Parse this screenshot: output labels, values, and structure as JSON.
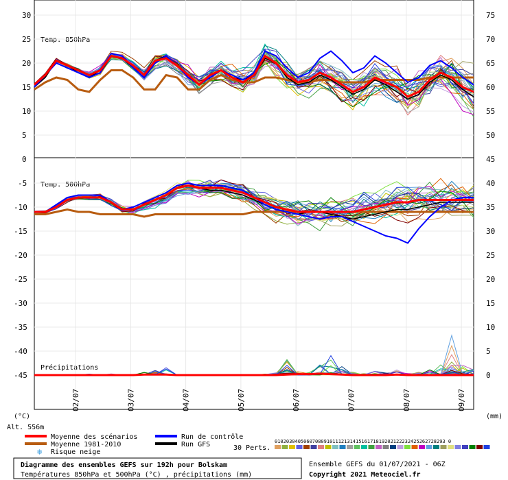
{
  "chart_data": {
    "type": "line",
    "x_labels": [
      "02/07",
      "03/07",
      "04/07",
      "05/07",
      "06/07",
      "07/07",
      "08/07",
      "09/07"
    ],
    "panels": {
      "t850": {
        "title": "Temp. 850hPa",
        "left_ticks": [
          "30",
          "25",
          "20",
          "15",
          "10",
          "5"
        ],
        "right_ticks": [
          "75",
          "70",
          "65",
          "60",
          "55",
          "50"
        ],
        "mean": [
          15.5,
          17.5,
          20.5,
          19.5,
          18.5,
          17.5,
          18.5,
          21.5,
          21,
          19.5,
          17.5,
          20.5,
          21,
          19.5,
          17.5,
          15.5,
          17.5,
          18.5,
          17,
          16,
          17.5,
          21.5,
          20,
          17.5,
          16,
          16.5,
          18,
          17,
          15.5,
          14,
          15,
          17,
          16,
          15,
          13,
          14,
          16.5,
          18,
          17,
          15,
          14
        ],
        "normal": [
          14.5,
          16,
          17,
          16.5,
          14.5,
          14,
          16.5,
          18.5,
          18.5,
          17,
          14.5,
          14.5,
          17.5,
          17,
          14.5,
          14.5,
          16.5,
          17.5,
          16.5,
          16,
          16,
          17,
          17,
          16.5,
          16,
          16,
          16.5,
          16.5,
          16,
          16,
          16,
          16.5,
          16.5,
          16.5,
          16.5,
          16.5,
          17,
          17,
          17,
          17,
          17
        ],
        "control": [
          15,
          17.5,
          20,
          19,
          18,
          17,
          18,
          22,
          21.5,
          19,
          17,
          20,
          21.5,
          19.5,
          17,
          15.5,
          17,
          18.5,
          17.5,
          16.5,
          18,
          22.5,
          21.5,
          19,
          17,
          18,
          21,
          22.5,
          20.5,
          18,
          19,
          21.5,
          20,
          18,
          16,
          17,
          19.5,
          20.5,
          19,
          17,
          15.5
        ],
        "gfs": [
          15,
          17,
          20.5,
          19.5,
          18,
          17,
          18.5,
          21.5,
          21,
          19,
          17,
          20.5,
          21.5,
          19.5,
          17.5,
          15.5,
          17.5,
          18.5,
          17,
          16.5,
          17.5,
          21,
          20,
          17,
          15.5,
          16,
          17.5,
          16.5,
          15,
          13.5,
          14.5,
          16.5,
          15.5,
          14,
          12.5,
          13.5,
          16,
          17.5,
          16.5,
          14.5,
          13
        ]
      },
      "t500": {
        "title": "Temp. 500hPa",
        "left_ticks": [
          "-5",
          "-10",
          "-15",
          "-20",
          "-25",
          "-30",
          "-35",
          "-40",
          "-45"
        ],
        "right_ticks": [
          "45",
          "40",
          "35",
          "30",
          "25",
          "20",
          "15",
          "10",
          "5",
          "0"
        ],
        "mean": [
          -11,
          -11,
          -10,
          -8.5,
          -8,
          -8,
          -8,
          -9,
          -10.5,
          -10.5,
          -9.5,
          -8.5,
          -7.5,
          -6,
          -5.5,
          -6,
          -6,
          -6,
          -6.5,
          -7,
          -8,
          -9,
          -10,
          -10.5,
          -11,
          -11,
          -11,
          -11,
          -11,
          -11,
          -10.5,
          -10,
          -9.5,
          -9,
          -9,
          -8.5,
          -8.5,
          -8.5,
          -8.5,
          -8.5,
          -8.5
        ],
        "normal": [
          -11.5,
          -11.5,
          -11,
          -10.5,
          -11,
          -11,
          -11.5,
          -11.5,
          -11.5,
          -11.5,
          -12,
          -11.5,
          -11.5,
          -11.5,
          -11.5,
          -11.5,
          -11.5,
          -11.5,
          -11.5,
          -11.5,
          -11,
          -11,
          -11,
          -11,
          -11,
          -11,
          -11,
          -11,
          -11,
          -11,
          -11,
          -11,
          -11,
          -11,
          -11,
          -11,
          -11,
          -11,
          -11,
          -11,
          -11
        ],
        "control": [
          -11,
          -11,
          -9.5,
          -8,
          -7.5,
          -7.5,
          -7.5,
          -9,
          -10.5,
          -10,
          -9,
          -8,
          -7,
          -5.5,
          -5,
          -5.5,
          -5.5,
          -5.5,
          -6,
          -6.5,
          -8,
          -9.5,
          -10.5,
          -11,
          -11.5,
          -12,
          -12.5,
          -12,
          -12,
          -13,
          -14,
          -15,
          -16,
          -16.5,
          -17.5,
          -14.5,
          -12,
          -10,
          -8.5,
          -8,
          -8
        ],
        "gfs": [
          -11,
          -11,
          -10,
          -8.5,
          -8,
          -8,
          -8,
          -9,
          -10.5,
          -10.5,
          -9.5,
          -8.5,
          -7.5,
          -6,
          -5.5,
          -6,
          -6.5,
          -6.5,
          -7,
          -7.5,
          -8.5,
          -9.5,
          -10.5,
          -11,
          -11.5,
          -11,
          -11,
          -11.5,
          -12,
          -12.5,
          -12,
          -11.5,
          -11,
          -10.5,
          -10.5,
          -10,
          -9.5,
          -9,
          -9,
          -9,
          -9
        ]
      },
      "precip": {
        "title": "Précipitations",
        "mean": [
          0,
          0,
          0,
          0,
          0,
          0,
          0,
          0,
          0,
          0,
          0.1,
          0.1,
          0.1,
          0,
          0,
          0,
          0,
          0,
          0,
          0,
          0,
          0,
          0,
          0.1,
          0.2,
          0.2,
          0.3,
          0.2,
          0.1,
          0,
          0,
          0,
          0,
          0.1,
          0,
          0,
          0,
          0,
          0,
          0,
          0
        ],
        "spikes": [
          0,
          0,
          0,
          0,
          0,
          0.2,
          0.1,
          0.3,
          0,
          0,
          0.5,
          1,
          1.5,
          0,
          0,
          0,
          0,
          0,
          0,
          0,
          0,
          0.2,
          0.5,
          3,
          1,
          0.5,
          2,
          3.5,
          2,
          0.5,
          0.3,
          0.8,
          0.5,
          1,
          0.3,
          0.5,
          1,
          2,
          7,
          2,
          1
        ]
      }
    },
    "axis_units": {
      "left": "(°C)",
      "right": "(mm)"
    },
    "altitude": "Alt. 556m"
  },
  "legend": {
    "mean": "Moyenne des scénarios",
    "normal": "Moyenne 1981-2010",
    "snow": "Risque neige",
    "control": "Run de contrôle",
    "gfs": "Run GFS",
    "perts": "30 Perts.",
    "pert_numbers": "01020304050607080910111213141516171819202122232425262728293 0"
  },
  "footer": {
    "title": "Diagramme des ensembles GEFS sur 192h pour Bolskam",
    "subtitle": "Températures 850hPa et 500hPa (°C) , précipitations (mm)",
    "ensemble": "Ensemble GEFS du 01/07/2021 - 06Z",
    "copyright": "Copyright 2021 Meteociel.fr"
  },
  "colors": {
    "mean": "#ff0000",
    "normal": "#b85c10",
    "control": "#0000ff",
    "gfs": "#000000",
    "perts": [
      "#e0a060",
      "#90b040",
      "#e0c000",
      "#6060e0",
      "#a04000",
      "#4040a0",
      "#e08080",
      "#c0c000",
      "#80c0c0",
      "#2080c0",
      "#a0a0a0",
      "#60c060",
      "#00c0a0",
      "#40a040",
      "#c060c0",
      "#808080",
      "#004080",
      "#c0a0e0",
      "#80e040",
      "#e06000",
      "#c000c0",
      "#60a0e0",
      "#008080",
      "#a0a060",
      "#e0e080",
      "#8080e0",
      "#4040c0",
      "#008000",
      "#800000",
      "#2040e0"
    ]
  }
}
